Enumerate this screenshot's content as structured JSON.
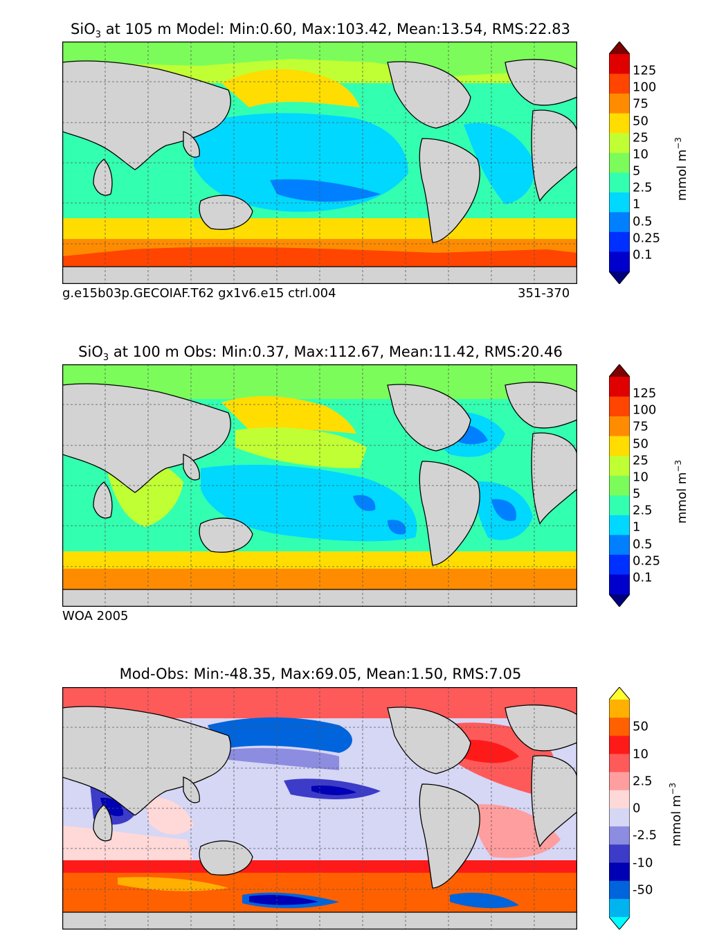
{
  "panels": [
    {
      "id": "model",
      "title_prefix": "SiO",
      "title_sub": "3",
      "title_rest": " at 105 m Model: Min:0.60, Max:103.42, Mean:13.54, RMS:22.83",
      "caption_left": "g.e15b03p.GECOIAF.T62 gx1v6.e15 ctrl.004",
      "caption_right": "351-370",
      "colorbar": {
        "ticks": [
          "125",
          "100",
          "75",
          "50",
          "25",
          "10",
          "5",
          "2.5",
          "1",
          "0.5",
          "0.25",
          "0.1"
        ],
        "colors": [
          "#7f0000",
          "#e00000",
          "#ff4500",
          "#ff8c00",
          "#ffdd00",
          "#c0ff33",
          "#7cfc5a",
          "#33ffb0",
          "#00d8ff",
          "#0080ff",
          "#0030ff",
          "#0000cd",
          "#00007f"
        ],
        "unit": "mmol m",
        "unit_sup": "−3"
      }
    },
    {
      "id": "obs",
      "title_prefix": "SiO",
      "title_sub": "3",
      "title_rest": " at 100 m Obs: Min:0.37, Max:112.67, Mean:11.42, RMS:20.46",
      "caption_left": "WOA 2005",
      "caption_right": "",
      "colorbar": {
        "ticks": [
          "125",
          "100",
          "75",
          "50",
          "25",
          "10",
          "5",
          "2.5",
          "1",
          "0.5",
          "0.25",
          "0.1"
        ],
        "colors": [
          "#7f0000",
          "#e00000",
          "#ff4500",
          "#ff8c00",
          "#ffdd00",
          "#c0ff33",
          "#7cfc5a",
          "#33ffb0",
          "#00d8ff",
          "#0080ff",
          "#0030ff",
          "#0000cd",
          "#00007f"
        ],
        "unit": "mmol m",
        "unit_sup": "−3"
      }
    },
    {
      "id": "diff",
      "title_prefix": "",
      "title_sub": "",
      "title_rest": "Mod-Obs: Min:-48.35, Max:69.05, Mean:1.50, RMS:7.05",
      "caption_left": "",
      "caption_right": "",
      "colorbar": {
        "ticks": [
          "50",
          "10",
          "2.5",
          "0",
          "-2.5",
          "-10",
          "-50"
        ],
        "colors": [
          "#ffff30",
          "#ffb000",
          "#ff6000",
          "#ff1a1a",
          "#ff5a5a",
          "#ff9e9e",
          "#ffd8d8",
          "#d6d6f5",
          "#8c8ce0",
          "#3c3cc8",
          "#0000b4",
          "#0064dc",
          "#00b4f0",
          "#00ffff"
        ],
        "unit": "mmol m",
        "unit_sup": "−3"
      }
    }
  ]
}
